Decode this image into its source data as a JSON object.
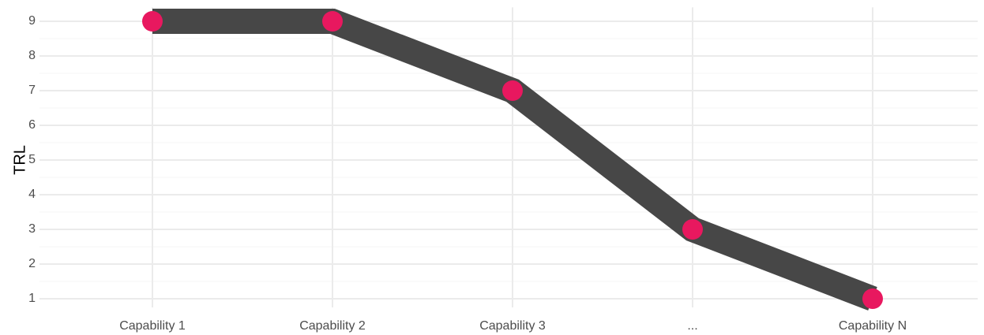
{
  "chart_data": {
    "type": "line",
    "categories": [
      "Capability 1",
      "Capability 2",
      "Capability 3",
      "...",
      "Capability N"
    ],
    "values": [
      9,
      9,
      7,
      3,
      1
    ],
    "title": "",
    "xlabel": "",
    "ylabel": "TRL",
    "ylim": [
      0.75,
      9.4
    ],
    "y_ticks": [
      1,
      2,
      3,
      4,
      5,
      6,
      7,
      8,
      9
    ],
    "grid": true,
    "legend": "none",
    "colors": {
      "line": "#474747",
      "points": "#e8185f",
      "grid": "#ebebeb",
      "tick_text": "#4d4d4d",
      "axis_title": "#000000"
    }
  }
}
